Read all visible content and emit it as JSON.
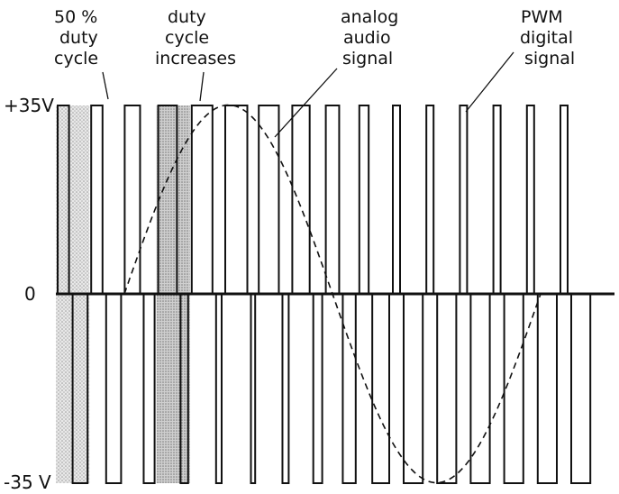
{
  "axis_labels": {
    "top": "+35V",
    "zero": "0",
    "bottom": "-35 V"
  },
  "annotations": [
    {
      "id": "duty-50",
      "lines": [
        "50 %",
        "duty",
        "cycle"
      ]
    },
    {
      "id": "duty-increase",
      "lines": [
        "duty",
        "cycle",
        "increases"
      ]
    },
    {
      "id": "analog",
      "lines": [
        "analog",
        "audio",
        "signal"
      ]
    },
    {
      "id": "pwm",
      "lines": [
        "PWM",
        "digital",
        "signal"
      ]
    }
  ],
  "pwm": {
    "pulse_count": 16,
    "duty_cycles": [
      0.5,
      0.5,
      0.62,
      0.72,
      0.78,
      0.82,
      0.76,
      0.68,
      0.56,
      0.44,
      0.34,
      0.27,
      0.22,
      0.2,
      0.25,
      0.35
    ]
  },
  "colors": {
    "stroke": "#111111",
    "shade": "#c9c9c9"
  }
}
